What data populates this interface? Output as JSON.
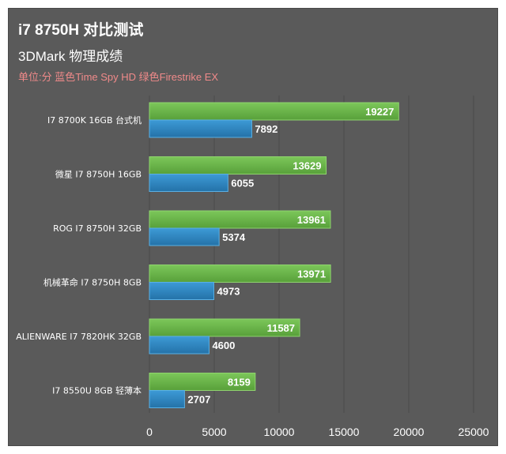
{
  "chart_data": {
    "type": "bar",
    "title": "i7 8750H 对比测试",
    "subtitle": "3DMark 物理成绩",
    "note": "单位:分 蓝色Time Spy HD 绿色Firestrike EX",
    "categories": [
      "I7 8700K 16GB 台式机",
      "微星 I7 8750H 16GB",
      "ROG I7 8750H 32GB",
      "机械革命 I7 8750H 8GB",
      "ALIENWARE I7 7820HK 32GB",
      "I7 8550U 8GB 轻薄本"
    ],
    "series": [
      {
        "name": "Firestrike EX",
        "color": "#6ab34a",
        "values": [
          19227,
          13629,
          13961,
          13971,
          11587,
          8159
        ]
      },
      {
        "name": "Time Spy HD",
        "color": "#2f86c0",
        "values": [
          7892,
          6055,
          5374,
          4973,
          4600,
          2707
        ]
      }
    ],
    "xlim": [
      0,
      25000
    ],
    "xticks": [
      0,
      5000,
      10000,
      15000,
      20000,
      25000
    ],
    "grid": true,
    "orientation": "horizontal"
  }
}
